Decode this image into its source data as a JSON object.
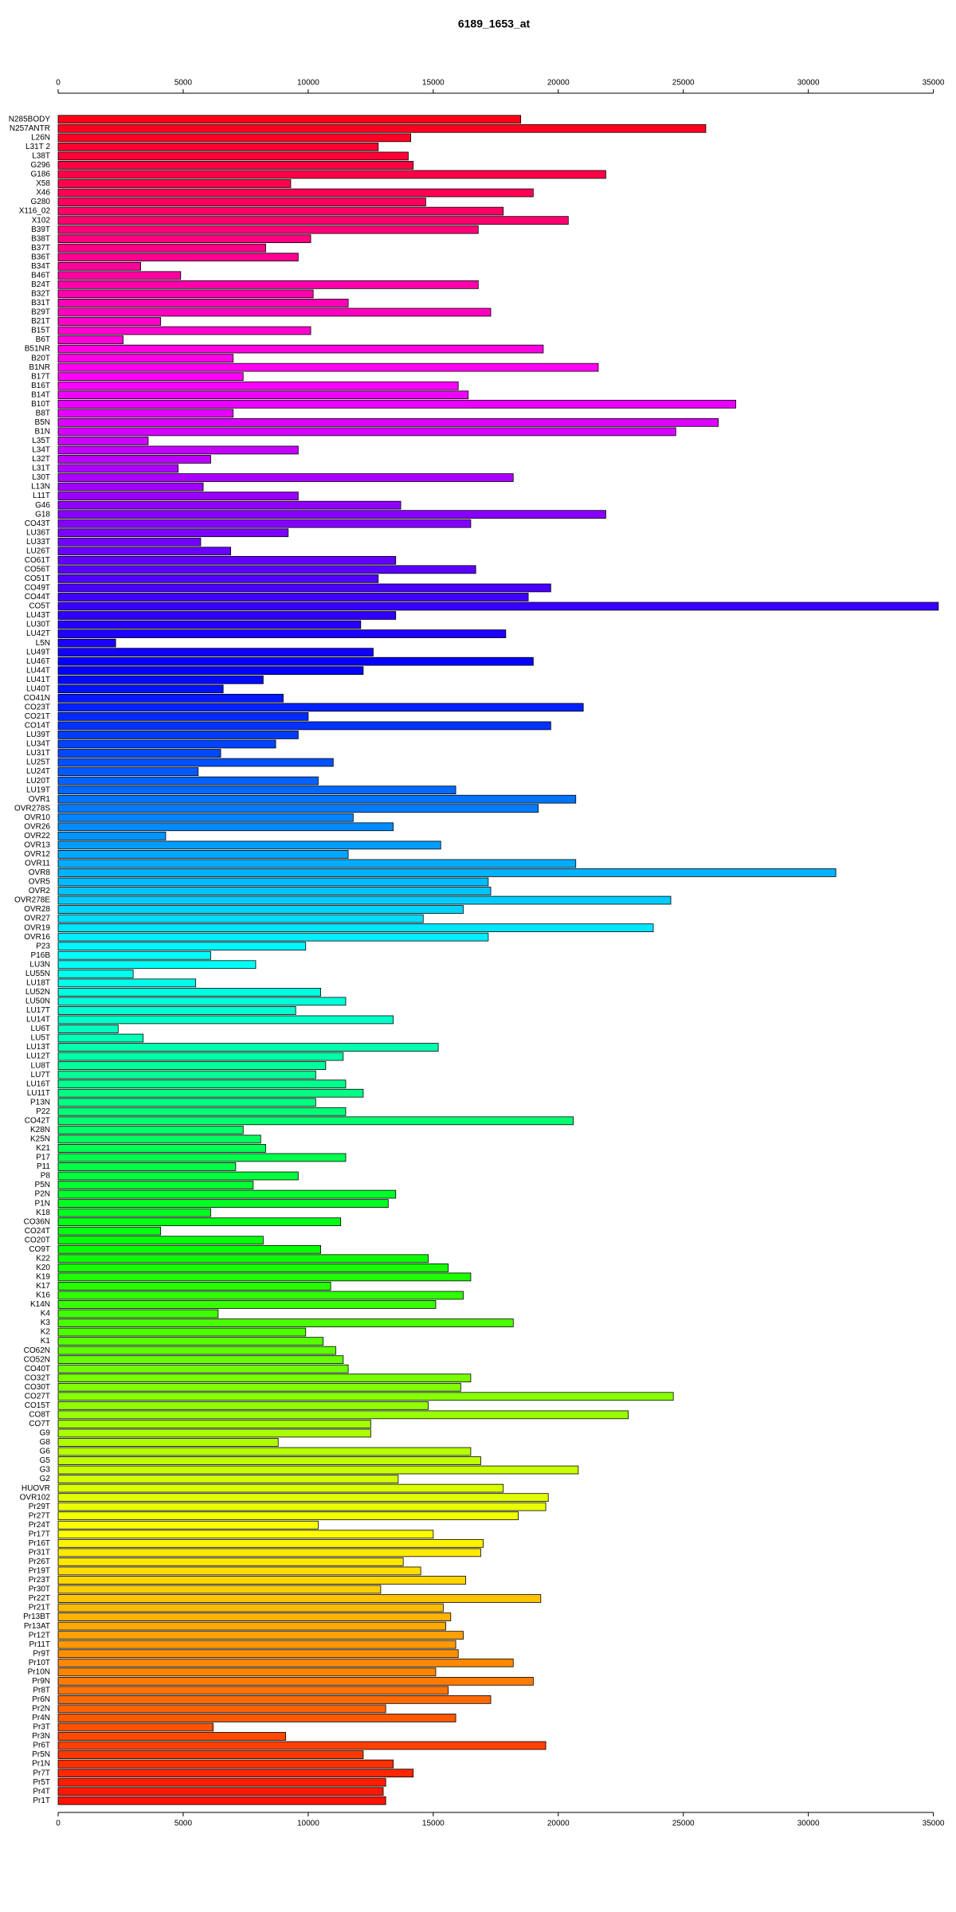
{
  "chart_data": {
    "type": "bar",
    "orientation": "horizontal",
    "title": "6189_1653_at",
    "categories": [
      "N285BODY",
      "N257ANTR",
      "L26N",
      "L31T 2",
      "L38T",
      "G296",
      "G186",
      "X58",
      "X46",
      "G280",
      "X116_02",
      "X102",
      "B39T",
      "B38T",
      "B37T",
      "B36T",
      "B34T",
      "B46T",
      "B24T",
      "B32T",
      "B31T",
      "B29T",
      "B21T",
      "B15T",
      "B6T",
      "B51NR",
      "B20T",
      "B1NR",
      "B17T",
      "B16T",
      "B14T",
      "B10T",
      "B8T",
      "B5N",
      "B1N",
      "L35T",
      "L34T",
      "L32T",
      "L31T",
      "L30T",
      "L13N",
      "L11T",
      "G46",
      "G18",
      "CO43T",
      "LU36T",
      "LU33T",
      "LU26T",
      "CO61T",
      "CO56T",
      "CO51T",
      "CO49T",
      "CO44T",
      "CO5T",
      "LU43T",
      "LU30T",
      "LU42T",
      "L5N",
      "LU49T",
      "LU46T",
      "LU44T",
      "LU41T",
      "LU40T",
      "CO41N",
      "CO23T",
      "CO21T",
      "CO14T",
      "LU39T",
      "LU34T",
      "LU31T",
      "LU25T",
      "LU24T",
      "LU20T",
      "LU19T",
      "OVR1",
      "OVR278S",
      "OVR10",
      "OVR26",
      "OVR22",
      "OVR13",
      "OVR12",
      "OVR11",
      "OVR8",
      "OVR5",
      "OVR2",
      "OVR278E",
      "OVR28",
      "OVR27",
      "OVR19",
      "OVR16",
      "P23",
      "P16B",
      "LU3N",
      "LU55N",
      "LU18T",
      "LU52N",
      "LU50N",
      "LU17T",
      "LU14T",
      "LU6T",
      "LU5T",
      "LU13T",
      "LU12T",
      "LU8T",
      "LU7T",
      "LU16T",
      "LU11T",
      "P13N",
      "P22",
      "CO42T",
      "K28N",
      "K25N",
      "K21",
      "P17",
      "P11",
      "P8",
      "P5N",
      "P2N",
      "P1N",
      "K18",
      "CO36N",
      "CO24T",
      "CO20T",
      "CO9T",
      "K22",
      "K20",
      "K19",
      "K17",
      "K16",
      "K14N",
      "K4",
      "K3",
      "K2",
      "K1",
      "CO62N",
      "CO52N",
      "CO40T",
      "CO32T",
      "CO30T",
      "CO27T",
      "CO15T",
      "CO8T",
      "CO7T",
      "G9",
      "G8",
      "G6",
      "G5",
      "G3",
      "G2",
      "HUOVR",
      "OVR102",
      "Pr29T",
      "Pr27T",
      "Pr24T",
      "Pr17T",
      "Pr16T",
      "Pr31T",
      "Pr26T",
      "Pr19T",
      "Pr23T",
      "Pr30T",
      "Pr22T",
      "Pr21T",
      "Pr13BT",
      "Pr13AT",
      "Pr12T",
      "Pr11T",
      "Pr9T",
      "Pr10T",
      "Pr10N",
      "Pr9N",
      "Pr8T",
      "Pr6N",
      "Pr2N",
      "Pr4N",
      "Pr3T",
      "Pr3N",
      "Pr6T",
      "Pr5N",
      "Pr1N",
      "Pr7T",
      "Pr5T",
      "Pr4T",
      "Pr1T"
    ],
    "values": [
      18500,
      25900,
      14100,
      12800,
      14000,
      14200,
      21900,
      9300,
      19000,
      14700,
      17800,
      20400,
      16800,
      10100,
      8300,
      9600,
      3300,
      4900,
      16800,
      10200,
      11600,
      17300,
      4100,
      10100,
      2600,
      19400,
      7000,
      21600,
      7400,
      16000,
      16400,
      27100,
      7000,
      26400,
      24700,
      3600,
      9600,
      6100,
      4800,
      18200,
      5800,
      9600,
      13700,
      21900,
      16500,
      9200,
      5700,
      6900,
      13500,
      16700,
      12800,
      19700,
      18800,
      35200,
      13500,
      12100,
      17900,
      2300,
      12600,
      19000,
      12200,
      8200,
      6600,
      9000,
      21000,
      10000,
      19700,
      9600,
      8700,
      6500,
      11000,
      5600,
      10400,
      15900,
      20700,
      19200,
      11800,
      13400,
      4300,
      15300,
      11600,
      20700,
      31100,
      17200,
      17300,
      24500,
      16200,
      14600,
      23800,
      17200,
      9900,
      6100,
      7900,
      3000,
      5500,
      10500,
      11500,
      9500,
      13400,
      2400,
      3400,
      15200,
      11400,
      10700,
      10300,
      11500,
      12200,
      10300,
      11500,
      20600,
      7400,
      8100,
      8300,
      11500,
      7100,
      9600,
      7800,
      13500,
      13200,
      6100,
      11300,
      4100,
      8200,
      10500,
      14800,
      15600,
      16500,
      10900,
      16200,
      15100,
      6400,
      18200,
      9900,
      10600,
      11100,
      11400,
      11600,
      16500,
      16100,
      24600,
      14800,
      22800,
      12500,
      12500,
      8800,
      16500,
      16900,
      20800,
      13600,
      17800,
      19600,
      19500,
      18400,
      10400,
      15000,
      17000,
      16900,
      13800,
      14500,
      16300,
      12900,
      19300,
      15400,
      15700,
      15500,
      16200,
      15900,
      16000,
      18200,
      15100,
      19000,
      15600,
      17300,
      13100,
      15900,
      6200,
      9100,
      19500,
      12200,
      13400,
      14200,
      13100,
      13000,
      13100
    ],
    "colors": [
      "hsl(355,100%,50%)",
      "hsl(353,100%,50%)",
      "hsl(351,100%,50%)",
      "hsl(349,100%,50%)",
      "hsl(347,100%,50%)",
      "hsl(345,100%,50%)",
      "hsl(343,100%,50%)",
      "hsl(342,100%,50%)",
      "hsl(340,100%,50%)",
      "hsl(338,100%,50%)",
      "hsl(336,100%,50%)",
      "hsl(334,100%,50%)",
      "hsl(332,100%,50%)",
      "hsl(330,100%,50%)",
      "hsl(328,100%,50%)",
      "hsl(326,100%,50%)",
      "hsl(324,100%,50%)",
      "hsl(322,100%,50%)",
      "hsl(320,100%,50%)",
      "hsl(319,100%,50%)",
      "hsl(317,100%,50%)",
      "hsl(315,100%,50%)",
      "hsl(313,100%,50%)",
      "hsl(311,100%,50%)",
      "hsl(309,100%,50%)",
      "hsl(307,100%,50%)",
      "hsl(305,100%,50%)",
      "hsl(303,100%,50%)",
      "hsl(301,100%,50%)",
      "hsl(299,100%,50%)",
      "hsl(297,100%,50%)",
      "hsl(295,100%,50%)",
      "hsl(294,100%,50%)",
      "hsl(292,100%,50%)",
      "hsl(290,100%,50%)",
      "hsl(288,100%,50%)",
      "hsl(286,100%,50%)",
      "hsl(284,100%,50%)",
      "hsl(282,100%,50%)",
      "hsl(280,100%,50%)",
      "hsl(278,100%,50%)",
      "hsl(276,100%,50%)",
      "hsl(274,100%,50%)",
      "hsl(272,100%,50%)",
      "hsl(271,100%,50%)",
      "hsl(269,100%,50%)",
      "hsl(267,100%,50%)",
      "hsl(265,100%,50%)",
      "hsl(263,100%,50%)",
      "hsl(261,100%,50%)",
      "hsl(259,100%,50%)",
      "hsl(257,100%,50%)",
      "hsl(255,100%,50%)",
      "hsl(253,100%,50%)",
      "hsl(251,100%,50%)",
      "hsl(249,100%,50%)",
      "hsl(247,100%,50%)",
      "hsl(246,100%,50%)",
      "hsl(244,100%,50%)",
      "hsl(242,100%,50%)",
      "hsl(240,100%,50%)",
      "hsl(238,100%,50%)",
      "hsl(236,100%,50%)",
      "hsl(234,100%,50%)",
      "hsl(232,100%,50%)",
      "hsl(230,100%,50%)",
      "hsl(228,100%,50%)",
      "hsl(226,100%,50%)",
      "hsl(224,100%,50%)",
      "hsl(223,100%,50%)",
      "hsl(221,100%,50%)",
      "hsl(219,100%,50%)",
      "hsl(217,100%,50%)",
      "hsl(215,100%,50%)",
      "hsl(213,100%,50%)",
      "hsl(211,100%,50%)",
      "hsl(209,100%,50%)",
      "hsl(207,100%,50%)",
      "hsl(205,100%,50%)",
      "hsl(203,100%,50%)",
      "hsl(201,100%,50%)",
      "hsl(199,100%,50%)",
      "hsl(198,100%,50%)",
      "hsl(196,100%,50%)",
      "hsl(194,100%,50%)",
      "hsl(192,100%,50%)",
      "hsl(190,100%,50%)",
      "hsl(188,100%,50%)",
      "hsl(186,100%,50%)",
      "hsl(184,100%,50%)",
      "hsl(182,100%,50%)",
      "hsl(180,100%,50%)",
      "hsl(178,100%,50%)",
      "hsl(176,100%,50%)",
      "hsl(175,100%,50%)",
      "hsl(173,100%,50%)",
      "hsl(171,100%,50%)",
      "hsl(169,100%,50%)",
      "hsl(167,100%,50%)",
      "hsl(165,100%,50%)",
      "hsl(163,100%,50%)",
      "hsl(161,100%,50%)",
      "hsl(159,100%,50%)",
      "hsl(157,100%,50%)",
      "hsl(155,100%,50%)",
      "hsl(153,100%,50%)",
      "hsl(151,100%,50%)",
      "hsl(150,100%,50%)",
      "hsl(148,100%,50%)",
      "hsl(146,100%,50%)",
      "hsl(144,100%,50%)",
      "hsl(142,100%,50%)",
      "hsl(140,100%,50%)",
      "hsl(138,100%,50%)",
      "hsl(136,100%,50%)",
      "hsl(134,100%,50%)",
      "hsl(132,100%,50%)",
      "hsl(130,100%,50%)",
      "hsl(128,100%,50%)",
      "hsl(127,100%,50%)",
      "hsl(125,100%,50%)",
      "hsl(123,100%,50%)",
      "hsl(121,100%,50%)",
      "hsl(119,100%,50%)",
      "hsl(117,100%,50%)",
      "hsl(115,100%,50%)",
      "hsl(113,100%,50%)",
      "hsl(111,100%,50%)",
      "hsl(109,100%,50%)",
      "hsl(107,100%,50%)",
      "hsl(105,100%,50%)",
      "hsl(103,100%,50%)",
      "hsl(102,100%,50%)",
      "hsl(100,100%,50%)",
      "hsl(98,100%,50%)",
      "hsl(96,100%,50%)",
      "hsl(94,100%,50%)",
      "hsl(92,100%,50%)",
      "hsl(90,100%,50%)",
      "hsl(88,100%,50%)",
      "hsl(86,100%,50%)",
      "hsl(84,100%,50%)",
      "hsl(82,100%,50%)",
      "hsl(80,100%,50%)",
      "hsl(79,100%,50%)",
      "hsl(77,100%,50%)",
      "hsl(75,100%,50%)",
      "hsl(73,100%,50%)",
      "hsl(71,100%,50%)",
      "hsl(69,100%,50%)",
      "hsl(67,100%,50%)",
      "hsl(65,100%,50%)",
      "hsl(63,100%,50%)",
      "hsl(61,100%,50%)",
      "hsl(59,100%,50%)",
      "hsl(57,100%,50%)",
      "hsl(55,100%,50%)",
      "hsl(54,100%,50%)",
      "hsl(52,100%,50%)",
      "hsl(50,100%,50%)",
      "hsl(48,100%,50%)",
      "hsl(46,100%,50%)",
      "hsl(44,100%,50%)",
      "hsl(42,100%,50%)",
      "hsl(40,100%,50%)",
      "hsl(38,100%,50%)",
      "hsl(36,100%,50%)",
      "hsl(34,100%,50%)",
      "hsl(32,100%,50%)",
      "hsl(31,100%,50%)",
      "hsl(29,100%,50%)",
      "hsl(27,100%,50%)",
      "hsl(25,100%,50%)",
      "hsl(23,100%,50%)",
      "hsl(21,100%,50%)",
      "hsl(19,100%,50%)",
      "hsl(17,100%,50%)",
      "hsl(15,100%,50%)",
      "hsl(13,100%,50%)",
      "hsl(11,100%,50%)",
      "hsl(9,100%,50%)",
      "hsl(7,100%,50%)",
      "hsl(6,100%,50%)",
      "hsl(4,100%,50%)"
    ],
    "xlim": [
      0,
      35300
    ],
    "xticks": [
      0,
      5000,
      10000,
      15000,
      20000,
      25000,
      30000,
      35000
    ]
  }
}
